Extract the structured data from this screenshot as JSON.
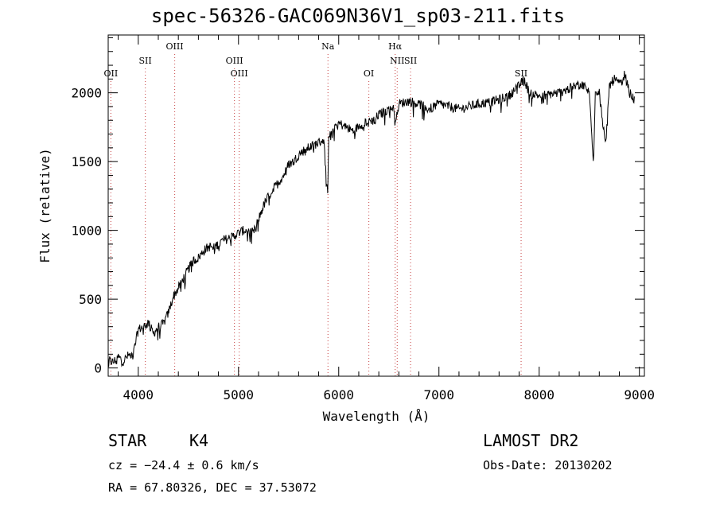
{
  "chart_data": {
    "type": "line",
    "title": "spec-56326-GAC069N36V1_sp03-211.fits",
    "xlabel": "Wavelength (Å)",
    "ylabel": "Flux (relative)",
    "xlim": [
      3700,
      9050
    ],
    "ylim": [
      -60,
      2420
    ],
    "xticks": [
      4000,
      5000,
      6000,
      7000,
      8000,
      9000
    ],
    "yticks": [
      0,
      500,
      1000,
      1500,
      2000
    ],
    "grid": false,
    "line_color": "#000000",
    "marker_color": "#d06060",
    "spectrum": {
      "x": [
        3700,
        3750,
        3800,
        3850,
        3900,
        3950,
        4000,
        4050,
        4100,
        4150,
        4200,
        4250,
        4300,
        4350,
        4400,
        4450,
        4500,
        4550,
        4600,
        4650,
        4700,
        4750,
        4800,
        4850,
        4900,
        4950,
        5000,
        5050,
        5100,
        5150,
        5200,
        5250,
        5300,
        5350,
        5400,
        5450,
        5500,
        5550,
        5600,
        5650,
        5700,
        5750,
        5800,
        5850,
        5890,
        5900,
        5950,
        6000,
        6050,
        6100,
        6150,
        6200,
        6250,
        6300,
        6350,
        6400,
        6450,
        6500,
        6550,
        6563,
        6600,
        6650,
        6700,
        6750,
        6800,
        6850,
        6900,
        6950,
        7000,
        7100,
        7200,
        7300,
        7400,
        7500,
        7600,
        7700,
        7800,
        7850,
        7900,
        8000,
        8100,
        8200,
        8300,
        8400,
        8450,
        8500,
        8542,
        8560,
        8600,
        8662,
        8700,
        8750,
        8800,
        8850,
        8900,
        8950
      ],
      "y": [
        60,
        40,
        80,
        50,
        90,
        100,
        280,
        300,
        330,
        250,
        300,
        320,
        400,
        520,
        580,
        650,
        720,
        780,
        800,
        850,
        880,
        880,
        900,
        930,
        940,
        960,
        980,
        1000,
        1000,
        980,
        1080,
        1180,
        1250,
        1300,
        1350,
        1400,
        1480,
        1500,
        1550,
        1580,
        1600,
        1620,
        1640,
        1660,
        1250,
        1700,
        1750,
        1780,
        1760,
        1740,
        1720,
        1760,
        1780,
        1800,
        1800,
        1840,
        1860,
        1880,
        1900,
        1760,
        1920,
        1930,
        1940,
        1930,
        1920,
        1900,
        1880,
        1900,
        1920,
        1900,
        1880,
        1900,
        1920,
        1930,
        1950,
        1980,
        2050,
        2100,
        2000,
        1980,
        1990,
        2000,
        2030,
        2060,
        2050,
        2000,
        1500,
        2000,
        2020,
        1600,
        2050,
        2100,
        2060,
        2150,
        2000,
        1950
      ],
      "noise": 35
    },
    "line_markers": [
      {
        "label": "OII",
        "x": 3727,
        "row": 3
      },
      {
        "label": "SII",
        "x": 4070,
        "row": 2
      },
      {
        "label": "OIII",
        "x": 4363,
        "row": 1
      },
      {
        "label": "OIII",
        "x": 4959,
        "row": 2
      },
      {
        "label": "OIII",
        "x": 5007,
        "row": 3
      },
      {
        "label": "Na",
        "x": 5893,
        "row": 1
      },
      {
        "label": "OI",
        "x": 6300,
        "row": 3
      },
      {
        "label": "Hα",
        "x": 6563,
        "row": 1
      },
      {
        "label": "NII",
        "x": 6584,
        "row": 2
      },
      {
        "label": "SII",
        "x": 6717,
        "row": 2
      },
      {
        "label": "SII",
        "x": 7820,
        "row": 3
      }
    ]
  },
  "info": {
    "object_class": "STAR",
    "subclass": "K4",
    "redshift": "cz = −24.4 ± 0.6 km/s",
    "coords": "RA =  67.80326, DEC =  37.53072",
    "survey": "LAMOST DR2",
    "obs_date": "Obs-Date: 20130202"
  }
}
